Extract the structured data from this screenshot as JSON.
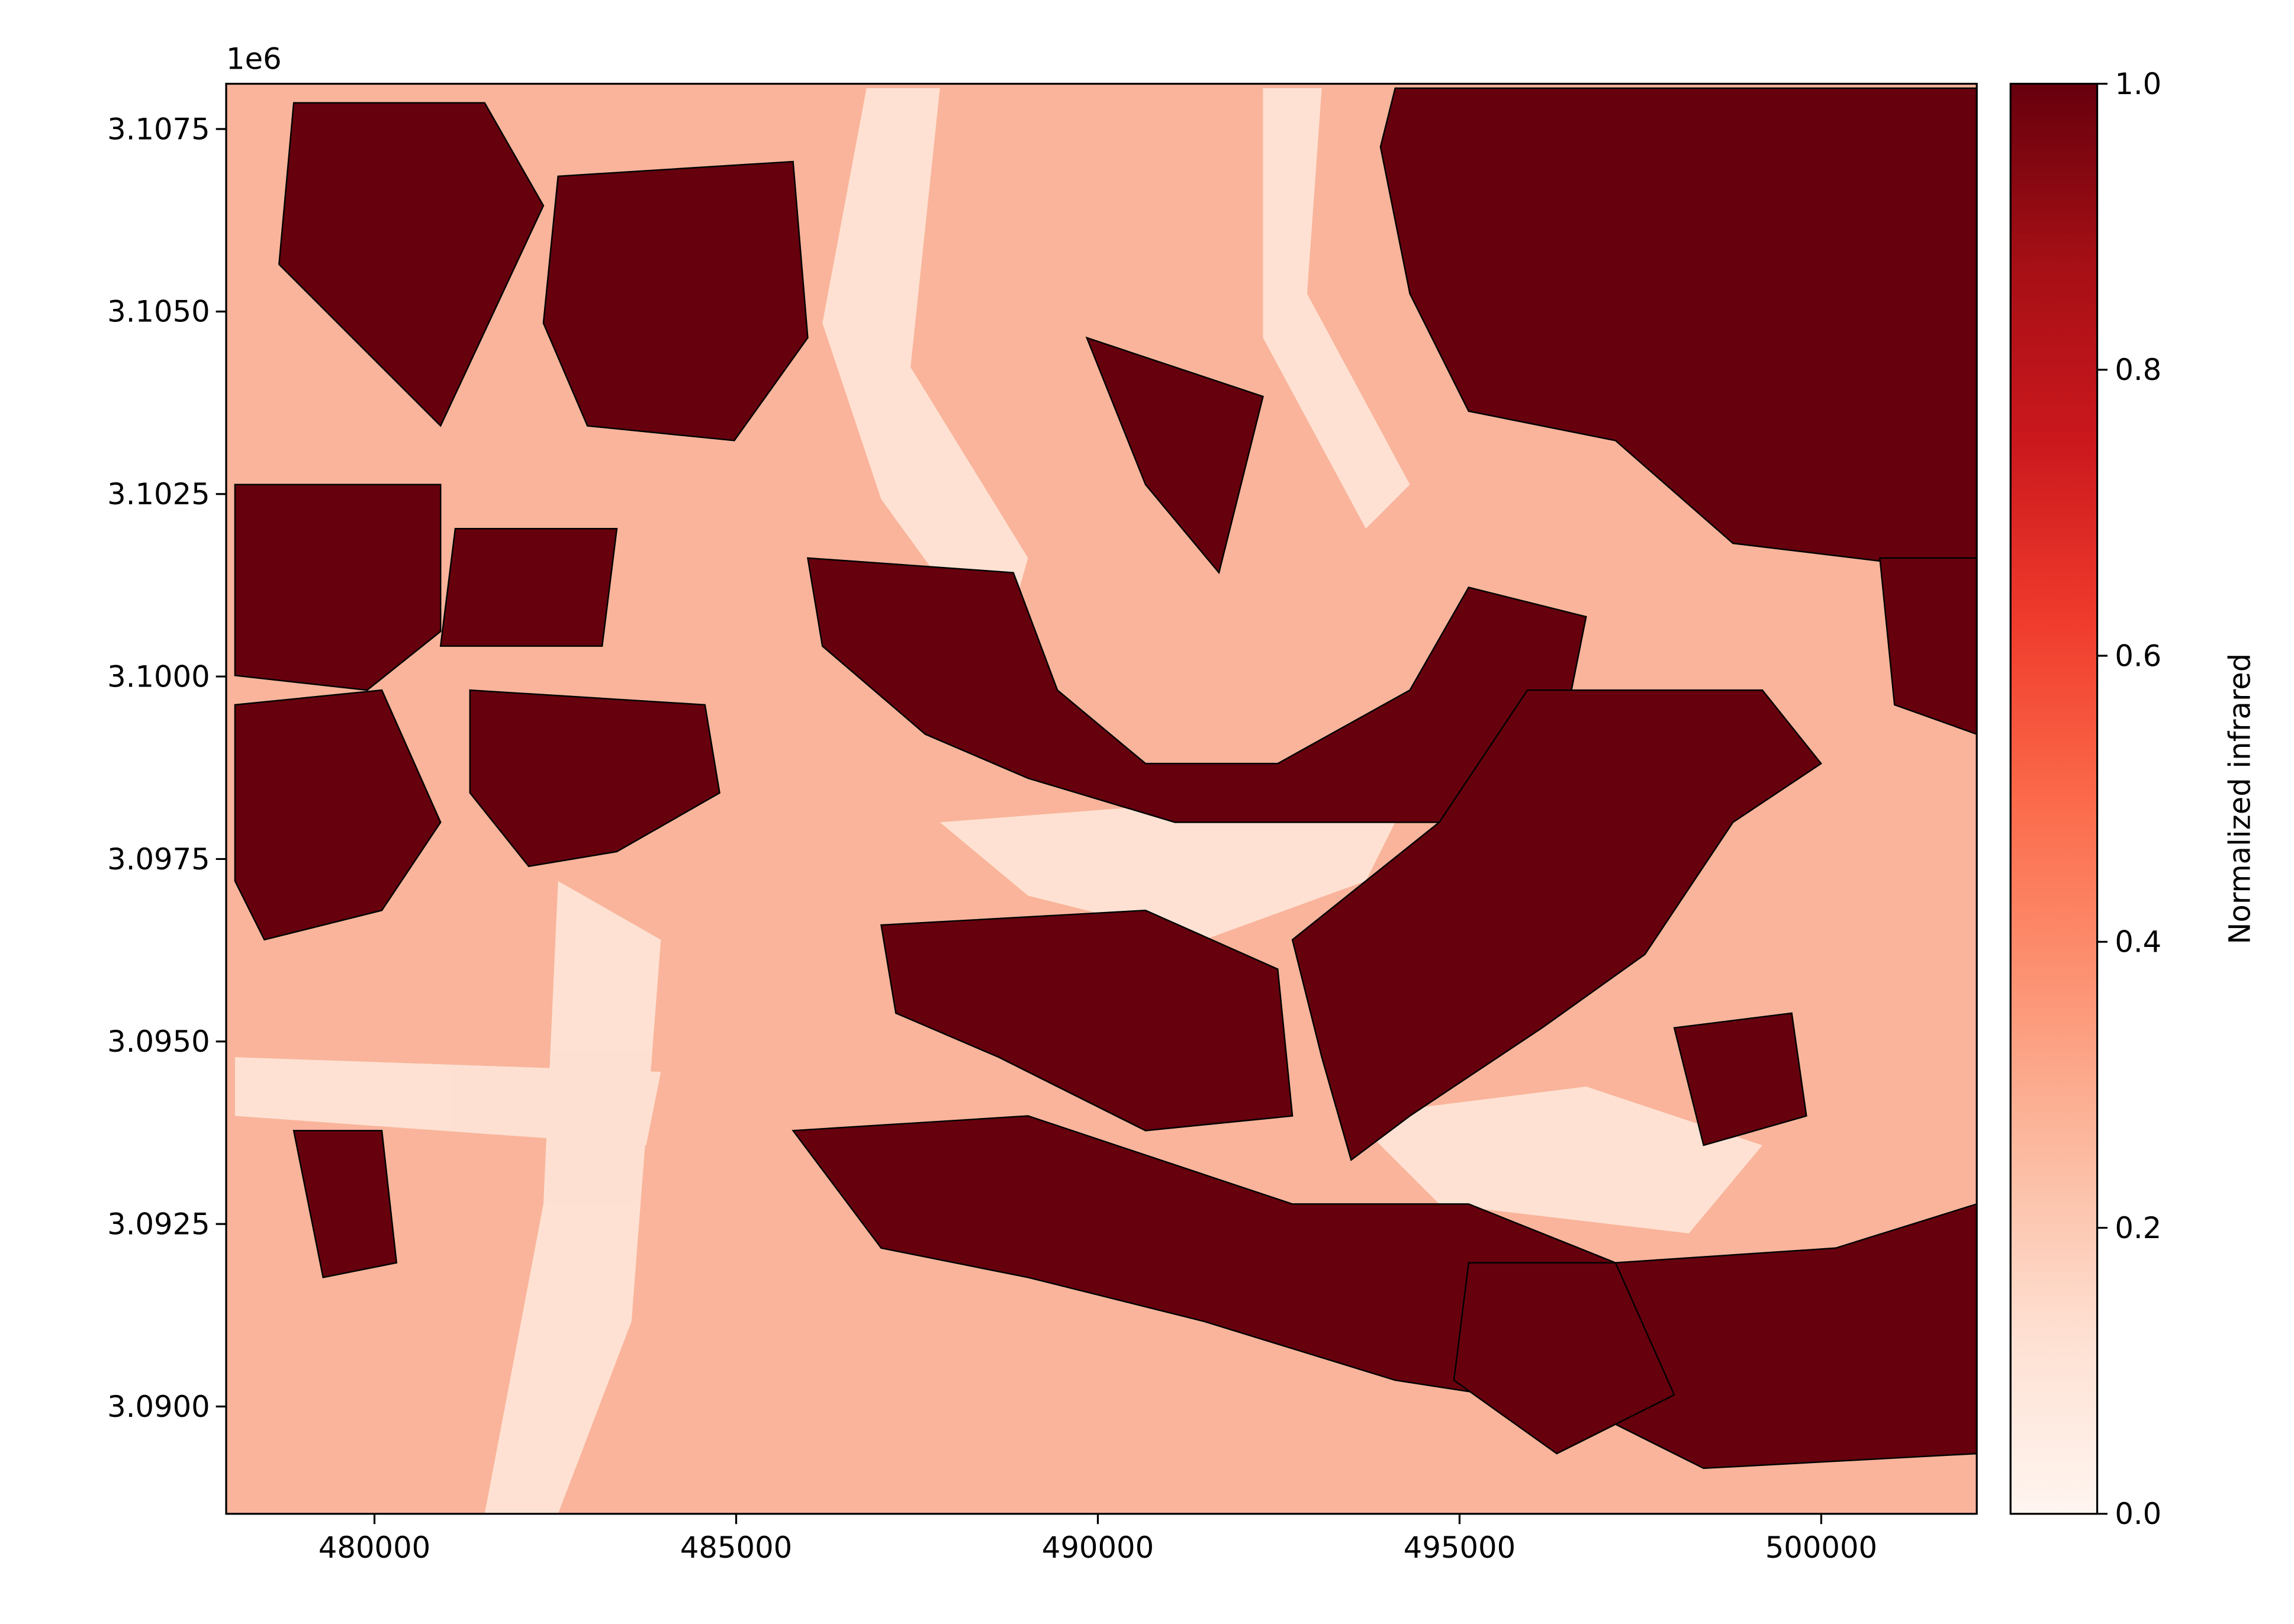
{
  "chart_data": {
    "type": "image",
    "offset_text": "1e6",
    "xlim": [
      477950,
      502150
    ],
    "ylim": [
      3088530,
      3108120
    ],
    "xticks": [
      480000,
      485000,
      490000,
      495000,
      500000
    ],
    "yticks": [
      {
        "value": 3090000,
        "label": "3.0900"
      },
      {
        "value": 3092500,
        "label": "3.0925"
      },
      {
        "value": 3095000,
        "label": "3.0950"
      },
      {
        "value": 3097500,
        "label": "3.0975"
      },
      {
        "value": 3100000,
        "label": "3.1000"
      },
      {
        "value": 3102500,
        "label": "3.1025"
      },
      {
        "value": 3105000,
        "label": "3.1050"
      },
      {
        "value": 3107500,
        "label": "3.1075"
      }
    ],
    "colormap": "Reds",
    "colorbar": {
      "label": "Normalized infrared",
      "clim": [
        0,
        1
      ],
      "ticks": [
        {
          "value": 0,
          "label": "0.0"
        },
        {
          "value": 0.2,
          "label": "0.2"
        },
        {
          "value": 0.4,
          "label": "0.4"
        },
        {
          "value": 0.6,
          "label": "0.6"
        },
        {
          "value": 0.8,
          "label": "0.8"
        },
        {
          "value": 1,
          "label": "1.0"
        }
      ]
    }
  }
}
